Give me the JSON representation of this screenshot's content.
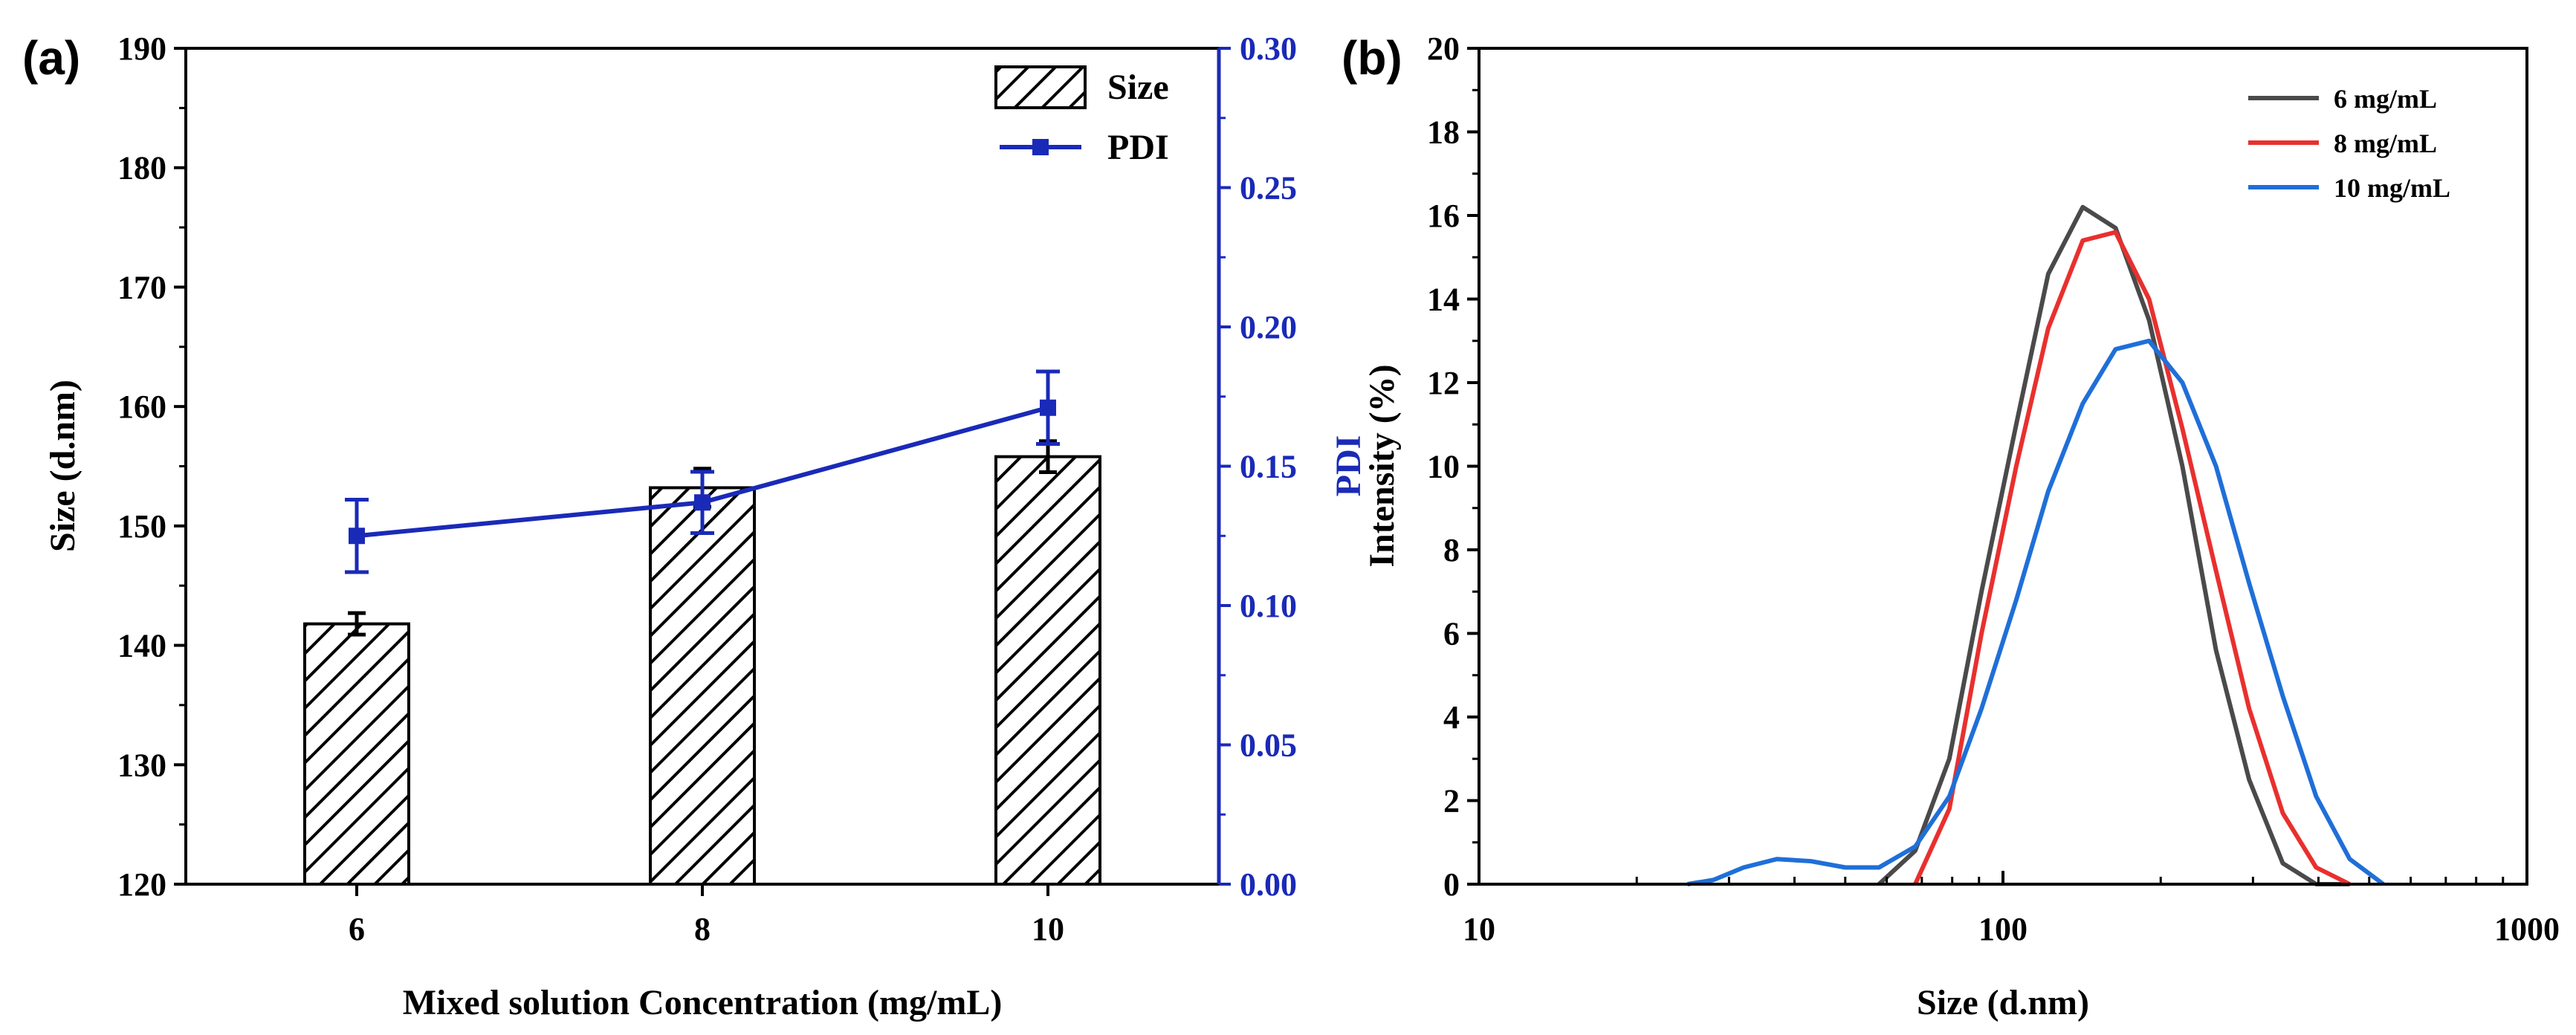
{
  "chart_data": [
    {
      "panel_label": "(a)",
      "type": "bar",
      "categories": [
        "6",
        "8",
        "10"
      ],
      "series": [
        {
          "name": "Size",
          "kind": "bar",
          "values": [
            141.8,
            153.2,
            155.8
          ],
          "errors": [
            0.9,
            1.6,
            1.3
          ],
          "color": "#000000"
        },
        {
          "name": "PDI",
          "kind": "line",
          "values": [
            0.125,
            0.137,
            0.171
          ],
          "errors": [
            0.013,
            0.011,
            0.013
          ],
          "color": "#1a2ab8"
        }
      ],
      "xlabel": "Mixed solution Concentration (mg/mL)",
      "ylabel": "Size (d.nm)",
      "y2label": "PDI",
      "ylim": [
        120,
        190
      ],
      "yticks": [
        "120",
        "130",
        "140",
        "150",
        "160",
        "170",
        "180",
        "190"
      ],
      "y2lim": [
        0.0,
        0.3
      ],
      "y2ticks": [
        "0.00",
        "0.05",
        "0.10",
        "0.15",
        "0.20",
        "0.25",
        "0.30"
      ],
      "legend": [
        "Size",
        "PDI"
      ],
      "legend_position": "top-right"
    },
    {
      "panel_label": "(b)",
      "type": "line",
      "x_scale": "log",
      "xlim": [
        10,
        1000
      ],
      "xticks": [
        "10",
        "100",
        "1000"
      ],
      "ylim": [
        0,
        20
      ],
      "yticks": [
        "0",
        "2",
        "4",
        "6",
        "8",
        "10",
        "12",
        "14",
        "16",
        "18",
        "20"
      ],
      "xlabel": "Size (d.nm)",
      "ylabel": "Intensity (%)",
      "legend_position": "top-right",
      "series": [
        {
          "name": "6 mg/mL",
          "color": "#4a4a4a",
          "x": [
            58,
            68,
            79,
            91,
            106,
            122,
            142,
            164,
            190,
            220,
            255,
            295,
            342,
            396,
            459
          ],
          "y": [
            0,
            0.8,
            3.0,
            7.0,
            11.0,
            14.6,
            16.2,
            15.7,
            13.5,
            10.0,
            5.6,
            2.5,
            0.5,
            0,
            0
          ]
        },
        {
          "name": "8 mg/mL",
          "color": "#e8302e",
          "x": [
            68,
            79,
            91,
            106,
            122,
            142,
            164,
            190,
            220,
            255,
            295,
            342,
            396,
            459
          ],
          "y": [
            0,
            1.8,
            6.0,
            10.0,
            13.3,
            15.4,
            15.6,
            14.0,
            10.9,
            7.5,
            4.2,
            1.7,
            0.4,
            0
          ]
        },
        {
          "name": "10 mg/mL",
          "color": "#1f6fd8",
          "x": [
            25,
            28,
            32,
            37,
            43,
            50,
            58,
            68,
            79,
            91,
            106,
            122,
            142,
            164,
            190,
            220,
            255,
            295,
            342,
            396,
            459,
            532
          ],
          "y": [
            0,
            0.1,
            0.4,
            0.6,
            0.55,
            0.4,
            0.4,
            0.9,
            2.1,
            4.2,
            6.8,
            9.4,
            11.5,
            12.8,
            13.0,
            12.0,
            10.0,
            7.2,
            4.5,
            2.1,
            0.6,
            0
          ]
        }
      ]
    }
  ]
}
